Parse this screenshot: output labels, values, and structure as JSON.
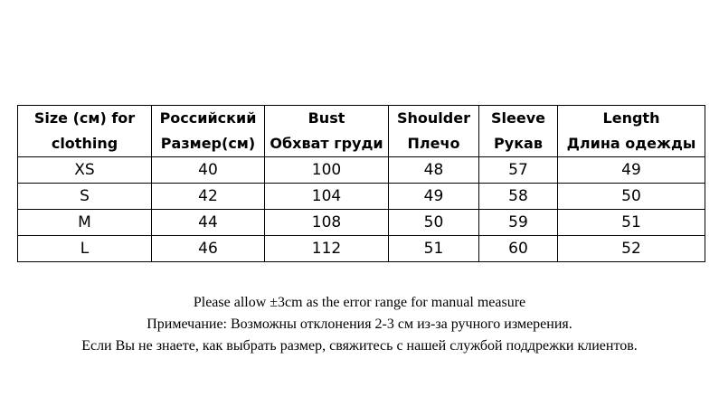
{
  "table": {
    "headers": [
      {
        "line1": "Size (см) for",
        "line2": "clothing"
      },
      {
        "line1": "Российский",
        "line2": "Размер(см)"
      },
      {
        "line1": "Bust",
        "line2": "Обхват груди"
      },
      {
        "line1": "Shoulder",
        "line2": "Плечо"
      },
      {
        "line1": "Sleeve",
        "line2": "Рукав"
      },
      {
        "line1": "Length",
        "line2": "Длина одежды"
      }
    ],
    "rows": [
      [
        "XS",
        "40",
        "100",
        "48",
        "57",
        "49"
      ],
      [
        "S",
        "42",
        "104",
        "49",
        "58",
        "50"
      ],
      [
        "M",
        "44",
        "108",
        "50",
        "59",
        "51"
      ],
      [
        "L",
        "46",
        "112",
        "51",
        "60",
        "52"
      ]
    ]
  },
  "notes": {
    "line1": "Please allow ±3cm as the error range for manual measure",
    "line2": "Примечание: Возможны отклонения 2-3 см из-за ручного измерения.",
    "line3": "Если Вы не знаете, как выбрать размер, свяжитесь с нашей службой поддрежки клиентов."
  }
}
